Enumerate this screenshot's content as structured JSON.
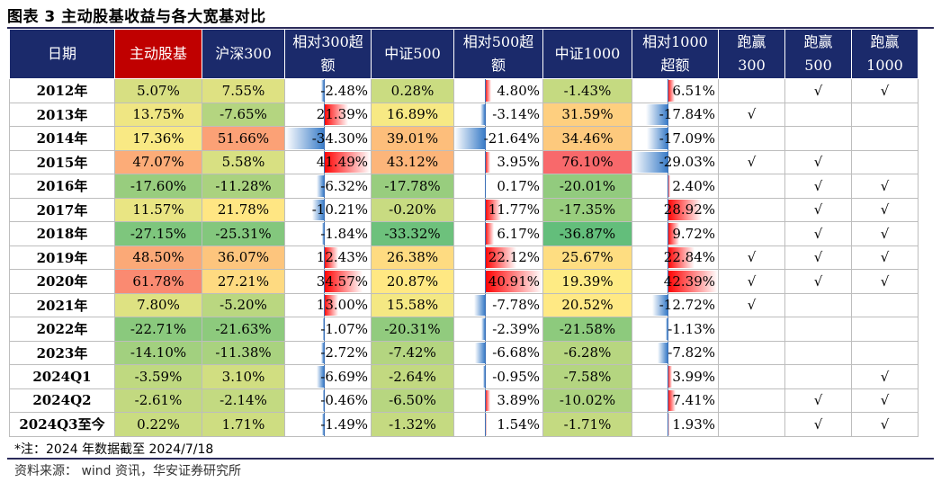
{
  "caption": "图表 3 主动股基收益与各大宽基对比",
  "headers": {
    "date": "日期",
    "active": "主动股基",
    "hs300": "沪深300",
    "rel300_l1": "相对300超",
    "rel300_l2": "额",
    "zz500": "中证500",
    "rel500_l1": "相对500超",
    "rel500_l2": "额",
    "zz1000": "中证1000",
    "rel1000_l1": "相对1000",
    "rel1000_l2": "超额",
    "beat300_l1": "跑赢",
    "beat300_l2": "300",
    "beat500_l1": "跑赢",
    "beat500_l2": "500",
    "beat1000_l1": "跑赢",
    "beat1000_l2": "1000"
  },
  "colors": {
    "header_bg": "#1b2a6b",
    "highlight": "#c00000",
    "pos_bar": "#ff0000",
    "neg_bar": "#3b7dc8"
  },
  "rows": [
    {
      "date": "2012年",
      "active": "5.07%",
      "hs300": "7.55%",
      "rel300": "-2.48%",
      "zz500": "0.28%",
      "rel500": "4.80%",
      "zz1000": "-1.43%",
      "rel1000": "6.51%",
      "b300": "",
      "b500": "√",
      "b1000": "√"
    },
    {
      "date": "2013年",
      "active": "13.75%",
      "hs300": "-7.65%",
      "rel300": "21.39%",
      "zz500": "16.89%",
      "rel500": "-3.14%",
      "zz1000": "31.59%",
      "rel1000": "-17.84%",
      "b300": "√",
      "b500": "",
      "b1000": ""
    },
    {
      "date": "2014年",
      "active": "17.36%",
      "hs300": "51.66%",
      "rel300": "-34.30%",
      "zz500": "39.01%",
      "rel500": "-21.64%",
      "zz1000": "34.46%",
      "rel1000": "-17.09%",
      "b300": "",
      "b500": "",
      "b1000": ""
    },
    {
      "date": "2015年",
      "active": "47.07%",
      "hs300": "5.58%",
      "rel300": "41.49%",
      "zz500": "43.12%",
      "rel500": "3.95%",
      "zz1000": "76.10%",
      "rel1000": "-29.03%",
      "b300": "√",
      "b500": "√",
      "b1000": ""
    },
    {
      "date": "2016年",
      "active": "-17.60%",
      "hs300": "-11.28%",
      "rel300": "-6.32%",
      "zz500": "-17.78%",
      "rel500": "0.17%",
      "zz1000": "-20.01%",
      "rel1000": "2.40%",
      "b300": "",
      "b500": "√",
      "b1000": "√"
    },
    {
      "date": "2017年",
      "active": "11.57%",
      "hs300": "21.78%",
      "rel300": "-10.21%",
      "zz500": "-0.20%",
      "rel500": "11.77%",
      "zz1000": "-17.35%",
      "rel1000": "28.92%",
      "b300": "",
      "b500": "√",
      "b1000": "√"
    },
    {
      "date": "2018年",
      "active": "-27.15%",
      "hs300": "-25.31%",
      "rel300": "-1.84%",
      "zz500": "-33.32%",
      "rel500": "6.17%",
      "zz1000": "-36.87%",
      "rel1000": "9.72%",
      "b300": "",
      "b500": "√",
      "b1000": "√"
    },
    {
      "date": "2019年",
      "active": "48.50%",
      "hs300": "36.07%",
      "rel300": "12.43%",
      "zz500": "26.38%",
      "rel500": "22.12%",
      "zz1000": "25.67%",
      "rel1000": "22.84%",
      "b300": "√",
      "b500": "√",
      "b1000": "√"
    },
    {
      "date": "2020年",
      "active": "61.78%",
      "hs300": "27.21%",
      "rel300": "34.57%",
      "zz500": "20.87%",
      "rel500": "40.91%",
      "zz1000": "19.39%",
      "rel1000": "42.39%",
      "b300": "√",
      "b500": "√",
      "b1000": "√"
    },
    {
      "date": "2021年",
      "active": "7.80%",
      "hs300": "-5.20%",
      "rel300": "13.00%",
      "zz500": "15.58%",
      "rel500": "-7.78%",
      "zz1000": "20.52%",
      "rel1000": "-12.72%",
      "b300": "√",
      "b500": "",
      "b1000": ""
    },
    {
      "date": "2022年",
      "active": "-22.71%",
      "hs300": "-21.63%",
      "rel300": "-1.07%",
      "zz500": "-20.31%",
      "rel500": "-2.39%",
      "zz1000": "-21.58%",
      "rel1000": "-1.13%",
      "b300": "",
      "b500": "",
      "b1000": ""
    },
    {
      "date": "2023年",
      "active": "-14.10%",
      "hs300": "-11.38%",
      "rel300": "-2.72%",
      "zz500": "-7.42%",
      "rel500": "-6.68%",
      "zz1000": "-6.28%",
      "rel1000": "-7.82%",
      "b300": "",
      "b500": "",
      "b1000": ""
    },
    {
      "date": "2024Q1",
      "active": "-3.59%",
      "hs300": "3.10%",
      "rel300": "-6.69%",
      "zz500": "-2.64%",
      "rel500": "-0.95%",
      "zz1000": "-7.58%",
      "rel1000": "3.99%",
      "b300": "",
      "b500": "",
      "b1000": "√"
    },
    {
      "date": "2024Q2",
      "active": "-2.61%",
      "hs300": "-2.14%",
      "rel300": "-0.46%",
      "zz500": "-6.50%",
      "rel500": "3.89%",
      "zz1000": "-10.02%",
      "rel1000": "7.41%",
      "b300": "",
      "b500": "√",
      "b1000": "√"
    },
    {
      "date": "2024Q3至今",
      "active": "0.22%",
      "hs300": "1.71%",
      "rel300": "-1.49%",
      "zz500": "-1.32%",
      "rel500": "1.54%",
      "zz1000": "-1.71%",
      "rel1000": "1.93%",
      "b300": "",
      "b500": "√",
      "b1000": "√"
    }
  ],
  "note": "*注：2024 年数据截至 2024/7/18",
  "source": "资料来源： wind 资讯，华安证券研究所"
}
